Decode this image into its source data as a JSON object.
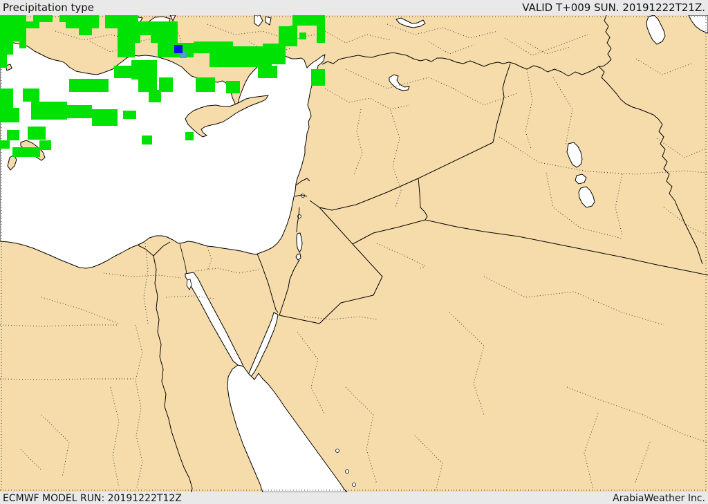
{
  "header": {
    "product_title": "Precipitation type",
    "valid_label": "VALID T+009 SUN. 20191222T21Z."
  },
  "footer": {
    "model_run": "ECMWF MODEL RUN: 20191222T12Z",
    "brand": "ArabiaWeather Inc."
  },
  "colors": {
    "land": "#f6dcab",
    "sea": "#ffffff",
    "rain": "#00e104",
    "snow": "#0a0af5",
    "mix": "#48a4c0",
    "bar_bg": "#e9e9e9",
    "coast_stroke": "#000000",
    "admin_stroke": "#3a3a3a"
  },
  "precipitation": {
    "legend": [
      {
        "type": "rain",
        "color": "#00e104"
      },
      {
        "type": "snow",
        "color": "#0a0af5"
      },
      {
        "type": "mix",
        "color": "#48a4c0"
      }
    ],
    "rain_cells": [
      [
        0,
        22,
        38,
        19
      ],
      [
        48,
        22,
        28,
        10
      ],
      [
        38,
        31,
        19,
        10
      ],
      [
        86,
        22,
        57,
        10
      ],
      [
        95,
        31,
        38,
        10
      ],
      [
        114,
        41,
        19,
        10
      ],
      [
        133,
        22,
        10,
        19
      ],
      [
        152,
        22,
        48,
        19
      ],
      [
        0,
        41,
        19,
        38
      ],
      [
        19,
        41,
        19,
        19
      ],
      [
        28,
        60,
        10,
        10
      ],
      [
        0,
        79,
        10,
        19
      ],
      [
        170,
        31,
        87,
        20
      ],
      [
        170,
        51,
        33,
        11
      ],
      [
        218,
        51,
        39,
        11
      ],
      [
        170,
        62,
        25,
        21
      ],
      [
        228,
        62,
        52,
        21
      ],
      [
        280,
        60,
        57,
        17
      ],
      [
        303,
        67,
        90,
        30
      ],
      [
        373,
        95,
        28,
        18
      ],
      [
        380,
        63,
        33,
        30
      ],
      [
        403,
        38,
        27,
        29
      ],
      [
        423,
        20,
        47,
        17
      ],
      [
        420,
        37,
        10,
        16
      ],
      [
        433,
        47,
        10,
        10
      ],
      [
        458,
        22,
        12,
        40
      ],
      [
        450,
        100,
        20,
        24
      ],
      [
        190,
        87,
        37,
        28
      ],
      [
        200,
        115,
        27,
        18
      ],
      [
        230,
        112,
        20,
        21
      ],
      [
        283,
        112,
        28,
        21
      ],
      [
        327,
        117,
        20,
        18
      ],
      [
        165,
        95,
        28,
        18
      ],
      [
        215,
        130,
        18,
        18
      ],
      [
        100,
        114,
        57,
        19
      ],
      [
        33,
        128,
        24,
        19
      ],
      [
        0,
        128,
        19,
        28
      ],
      [
        0,
        156,
        28,
        21
      ],
      [
        45,
        147,
        52,
        26
      ],
      [
        95,
        152,
        38,
        19
      ],
      [
        133,
        158,
        37,
        24
      ],
      [
        178,
        160,
        19,
        12
      ],
      [
        40,
        183,
        26,
        19
      ],
      [
        10,
        188,
        18,
        15
      ],
      [
        18,
        213,
        40,
        14
      ],
      [
        57,
        203,
        17,
        14
      ],
      [
        0,
        203,
        14,
        12
      ],
      [
        268,
        191,
        12,
        12
      ],
      [
        205,
        196,
        15,
        13
      ]
    ],
    "snow_cells": [
      [
        252,
        65,
        12,
        12
      ]
    ],
    "mix_cells": [
      [
        260,
        74,
        10,
        10
      ]
    ]
  }
}
